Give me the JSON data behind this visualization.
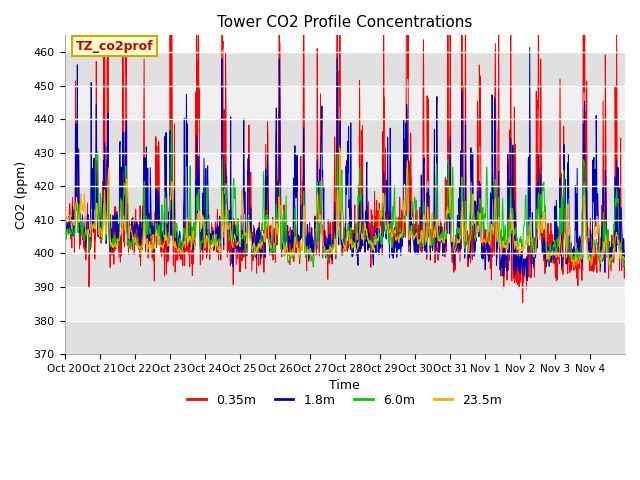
{
  "title": "Tower CO2 Profile Concentrations",
  "xlabel": "Time",
  "ylabel": "CO2 (ppm)",
  "ylim": [
    370,
    465
  ],
  "yticks": [
    370,
    380,
    390,
    400,
    410,
    420,
    430,
    440,
    450,
    460
  ],
  "series_labels": [
    "0.35m",
    "1.8m",
    "6.0m",
    "23.5m"
  ],
  "series_colors": [
    "#ff0000",
    "#0000bb",
    "#00cc00",
    "#ffaa00"
  ],
  "legend_label": "TZ_co2prof",
  "legend_fg": "#cc0000",
  "legend_bg": "#ffffcc",
  "legend_border": "#ccaa00",
  "fig_bg": "#ffffff",
  "plot_bg": "#ffffff",
  "band_color_dark": "#e0e0e0",
  "band_color_light": "#f0f0f0",
  "n_days": 16,
  "n_points_per_day": 96,
  "x_tick_labels": [
    "Oct 20",
    "Oct 21",
    "Oct 22",
    "Oct 23",
    "Oct 24",
    "Oct 25",
    "Oct 26",
    "Oct 27",
    "Oct 28",
    "Oct 29",
    "Oct 30",
    "Oct 31",
    "Nov 1",
    "Nov 2",
    "Nov 3",
    "Nov 4"
  ],
  "seed": 12345
}
